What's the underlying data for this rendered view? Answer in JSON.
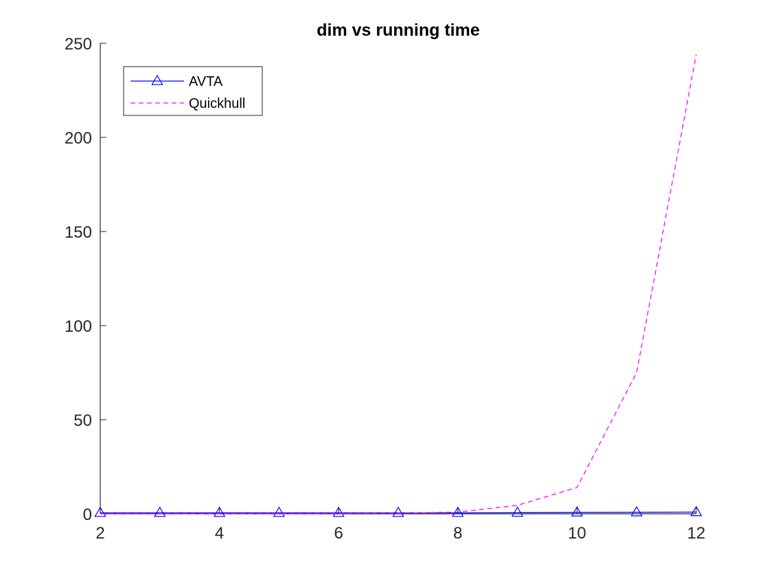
{
  "chart_data": {
    "type": "line",
    "title": "dim vs running time",
    "xlabel": "",
    "ylabel": "",
    "xlim": [
      2,
      12
    ],
    "ylim": [
      0,
      250
    ],
    "xticks": [
      2,
      4,
      6,
      8,
      10,
      12
    ],
    "yticks": [
      0,
      50,
      100,
      150,
      200,
      250
    ],
    "grid": false,
    "legend_position": "top-left",
    "x": [
      2,
      3,
      4,
      5,
      6,
      7,
      8,
      9,
      10,
      11,
      12
    ],
    "series": [
      {
        "name": "AVTA",
        "color": "#0000ff",
        "line_style": "solid",
        "marker": "triangle",
        "values": [
          0.5,
          0.5,
          0.5,
          0.5,
          0.5,
          0.5,
          0.5,
          0.6,
          0.7,
          0.8,
          0.9
        ]
      },
      {
        "name": "Quickhull",
        "color": "#ff00ff",
        "line_style": "dashed",
        "marker": "none",
        "values": [
          0.1,
          0.1,
          0.1,
          0.1,
          0.2,
          0.3,
          0.9,
          4.5,
          14,
          75,
          244
        ]
      }
    ]
  }
}
